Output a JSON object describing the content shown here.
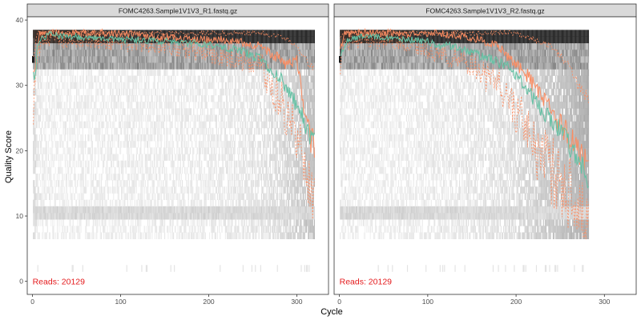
{
  "labels": {
    "ylabel": "Quality Score",
    "xlabel": "Cycle"
  },
  "colors": {
    "mean": "#66c2a5",
    "median": "#fc8d62",
    "quartile": "#fc8d62",
    "reads_text": "#e41a1c",
    "strip_bg": "#d9d9d9"
  },
  "chart_data": [
    {
      "type": "heatmap",
      "title": "FOMC4263.Sample1V1V3_R1.fastq.gz",
      "reads_label": "Reads:  20129",
      "xlabel": "Cycle",
      "ylabel": "Quality Score",
      "xlim": [
        -6,
        336
      ],
      "ylim": [
        -2,
        40.5
      ],
      "x_ticks": [
        0,
        100,
        200,
        300
      ],
      "y_ticks": [
        0,
        10,
        20,
        30,
        40
      ],
      "grid": false,
      "max_cycle": 320,
      "mean_quality": [
        [
          1,
          32
        ],
        [
          3,
          31
        ],
        [
          5,
          35
        ],
        [
          7,
          36
        ],
        [
          10,
          37.2
        ],
        [
          15,
          37.5
        ],
        [
          20,
          37.8
        ],
        [
          30,
          37.6
        ],
        [
          40,
          37.5
        ],
        [
          50,
          37.4
        ],
        [
          60,
          37.2
        ],
        [
          70,
          37.3
        ],
        [
          80,
          37.1
        ],
        [
          90,
          37.2
        ],
        [
          100,
          37.0
        ],
        [
          120,
          36.9
        ],
        [
          140,
          36.8
        ],
        [
          160,
          36.7
        ],
        [
          180,
          36.5
        ],
        [
          200,
          36.3
        ],
        [
          220,
          35.8
        ],
        [
          240,
          35.2
        ],
        [
          250,
          34.5
        ],
        [
          260,
          34.0
        ],
        [
          270,
          32.5
        ],
        [
          280,
          31.5
        ],
        [
          285,
          30.0
        ],
        [
          290,
          29.0
        ],
        [
          295,
          28.0
        ],
        [
          300,
          27.0
        ],
        [
          305,
          26.0
        ],
        [
          310,
          24.0
        ],
        [
          315,
          22.5
        ],
        [
          320,
          21.0
        ]
      ],
      "median_quality": [
        [
          1,
          32
        ],
        [
          5,
          34
        ],
        [
          8,
          38
        ],
        [
          20,
          38
        ],
        [
          60,
          38
        ],
        [
          100,
          38
        ],
        [
          140,
          37.5
        ],
        [
          180,
          37
        ],
        [
          220,
          37
        ],
        [
          260,
          36
        ],
        [
          280,
          34
        ],
        [
          290,
          33
        ],
        [
          300,
          34
        ],
        [
          305,
          30
        ],
        [
          310,
          25
        ],
        [
          315,
          22
        ],
        [
          320,
          21
        ]
      ],
      "q25_quality": [
        [
          1,
          27
        ],
        [
          5,
          34
        ],
        [
          10,
          37
        ],
        [
          50,
          37
        ],
        [
          100,
          36.5
        ],
        [
          150,
          36
        ],
        [
          200,
          35
        ],
        [
          240,
          34
        ],
        [
          260,
          33
        ],
        [
          270,
          30
        ],
        [
          280,
          28
        ],
        [
          285,
          27
        ],
        [
          290,
          25
        ],
        [
          295,
          24
        ],
        [
          300,
          22
        ],
        [
          305,
          20
        ],
        [
          310,
          18
        ],
        [
          315,
          16
        ],
        [
          320,
          14
        ]
      ],
      "q75_quality": [
        [
          1,
          34
        ],
        [
          5,
          38
        ],
        [
          20,
          38
        ],
        [
          100,
          38
        ],
        [
          200,
          38
        ],
        [
          260,
          38
        ],
        [
          280,
          37.5
        ],
        [
          290,
          37
        ],
        [
          300,
          36
        ],
        [
          305,
          35
        ],
        [
          310,
          34
        ],
        [
          315,
          33
        ],
        [
          320,
          33
        ]
      ]
    },
    {
      "type": "heatmap",
      "title": "FOMC4263.Sample1V1V3_R2.fastq.gz",
      "reads_label": "Reads:  20129",
      "xlabel": "Cycle",
      "ylabel": "Quality Score",
      "xlim": [
        -6,
        336
      ],
      "ylim": [
        -2,
        40.5
      ],
      "x_ticks": [
        0,
        100,
        200,
        300
      ],
      "y_ticks": [
        0,
        10,
        20,
        30,
        40
      ],
      "grid": false,
      "max_cycle": 282,
      "mean_quality": [
        [
          1,
          35
        ],
        [
          5,
          36
        ],
        [
          10,
          37
        ],
        [
          30,
          37.5
        ],
        [
          60,
          37.3
        ],
        [
          80,
          37
        ],
        [
          100,
          36.8
        ],
        [
          110,
          36
        ],
        [
          120,
          36.2
        ],
        [
          130,
          36
        ],
        [
          140,
          35.5
        ],
        [
          150,
          35
        ],
        [
          160,
          34.5
        ],
        [
          170,
          34
        ],
        [
          180,
          33.5
        ],
        [
          190,
          33
        ],
        [
          200,
          31.5
        ],
        [
          210,
          30
        ],
        [
          220,
          28
        ],
        [
          230,
          26
        ],
        [
          240,
          25
        ],
        [
          250,
          23
        ],
        [
          260,
          21
        ],
        [
          265,
          20
        ],
        [
          270,
          18.5
        ],
        [
          275,
          17
        ],
        [
          282,
          16
        ]
      ],
      "median_quality": [
        [
          1,
          35
        ],
        [
          5,
          38
        ],
        [
          30,
          38
        ],
        [
          80,
          38
        ],
        [
          110,
          38
        ],
        [
          140,
          37.5
        ],
        [
          160,
          37
        ],
        [
          180,
          36
        ],
        [
          200,
          33
        ],
        [
          210,
          32
        ],
        [
          220,
          30
        ],
        [
          230,
          28
        ],
        [
          240,
          26
        ],
        [
          250,
          24
        ],
        [
          260,
          22
        ],
        [
          270,
          20
        ],
        [
          282,
          18
        ]
      ],
      "q25_quality": [
        [
          1,
          32
        ],
        [
          5,
          36
        ],
        [
          30,
          37
        ],
        [
          80,
          36.5
        ],
        [
          110,
          35
        ],
        [
          140,
          34
        ],
        [
          160,
          32
        ],
        [
          180,
          30
        ],
        [
          200,
          26
        ],
        [
          210,
          24
        ],
        [
          220,
          21
        ],
        [
          230,
          19
        ],
        [
          240,
          17
        ],
        [
          250,
          15
        ],
        [
          260,
          14
        ],
        [
          270,
          13
        ],
        [
          282,
          12
        ]
      ],
      "q75_quality": [
        [
          1,
          37
        ],
        [
          5,
          38
        ],
        [
          100,
          38
        ],
        [
          150,
          38
        ],
        [
          200,
          38
        ],
        [
          220,
          37
        ],
        [
          240,
          36
        ],
        [
          260,
          33
        ],
        [
          270,
          30
        ],
        [
          282,
          28
        ]
      ]
    }
  ]
}
